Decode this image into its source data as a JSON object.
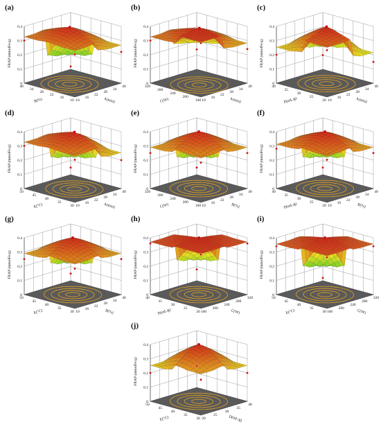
{
  "figure": {
    "background": "#ffffff",
    "surface_low_color": "#22c32a",
    "surface_mid_color": "#e8e020",
    "surface_high_color": "#d42a1a",
    "floor_color": "#5a5a5a",
    "contour_color": "#e6a21e"
  },
  "chart_data": [
    {
      "panel_label": "(a)",
      "type": "surface",
      "zlabel": "FRAP (mmolFe/g)",
      "z_ticks": [
        "0",
        "0.1",
        "0.2",
        "0.3",
        "0.4"
      ],
      "zlim": [
        0,
        0.4
      ],
      "xlabel": "A(min)",
      "x_ticks": [
        "10",
        "16",
        "22",
        "28",
        "34",
        "40"
      ],
      "xlim": [
        10,
        40
      ],
      "ylabel": "B(%)",
      "y_ticks": [
        "10",
        "16",
        "22",
        "28",
        "34",
        "40"
      ],
      "ylim": [
        10,
        40
      ],
      "surface": {
        "peak_x": 25,
        "peak_y": 27,
        "peak_z": 0.4,
        "corners": {
          "x_min_y_min": 0.02,
          "x_max_y_min": 0.22,
          "x_min_y_max": 0.3,
          "x_max_y_max": 0.3
        }
      }
    },
    {
      "panel_label": "(b)",
      "type": "surface",
      "zlabel": "FRAP (mmolFe/g)",
      "z_ticks": [
        "0",
        "0.1",
        "0.2",
        "0.3",
        "0.4"
      ],
      "zlim": [
        0,
        0.4
      ],
      "xlabel": "A(min)",
      "x_ticks": [
        "10",
        "16",
        "22",
        "28",
        "34",
        "40"
      ],
      "xlim": [
        10,
        40
      ],
      "ylabel": "C(W)",
      "y_ticks": [
        "160",
        "200",
        "240",
        "280",
        "320"
      ],
      "ylim": [
        160,
        320
      ],
      "surface": {
        "peak_x": 27,
        "peak_y": 250,
        "peak_z": 0.4,
        "corners": {
          "x_min_y_min": 0.14,
          "x_max_y_min": 0.24,
          "x_min_y_max": 0.3,
          "x_max_y_max": 0.38
        }
      }
    },
    {
      "panel_label": "(c)",
      "type": "surface",
      "zlabel": "FRAP (mmolFe/g)",
      "z_ticks": [
        "0",
        "0.1",
        "0.2",
        "0.3",
        "0.4"
      ],
      "zlim": [
        0,
        0.4
      ],
      "xlabel": "A(min)",
      "x_ticks": [
        "10",
        "16",
        "22",
        "28",
        "34",
        "40"
      ],
      "xlim": [
        10,
        40
      ],
      "ylabel": "D(mL/g)",
      "y_ticks": [
        "20",
        "25",
        "30",
        "35",
        "40"
      ],
      "ylim": [
        20,
        40
      ],
      "surface": {
        "peak_x": 26,
        "peak_y": 30,
        "peak_z": 0.4,
        "corners": {
          "x_min_y_min": 0.1,
          "x_max_y_min": 0.15,
          "x_min_y_max": 0.2,
          "x_max_y_max": 0.33
        }
      }
    },
    {
      "panel_label": "(d)",
      "type": "surface",
      "zlabel": "FRAP (mmolFe/g)",
      "z_ticks": [
        "0",
        "0.1",
        "0.2",
        "0.3",
        "0.4"
      ],
      "zlim": [
        0,
        0.4
      ],
      "xlabel": "A(min)",
      "x_ticks": [
        "10",
        "16",
        "22",
        "28",
        "34",
        "40"
      ],
      "xlim": [
        10,
        40
      ],
      "ylabel": "E(°C)",
      "y_ticks": [
        "30",
        "35",
        "40",
        "45",
        "50"
      ],
      "ylim": [
        30,
        50
      ],
      "surface": {
        "peak_x": 26,
        "peak_y": 40,
        "peak_z": 0.4,
        "corners": {
          "x_min_y_min": 0.05,
          "x_max_y_min": 0.2,
          "x_min_y_max": 0.3,
          "x_max_y_max": 0.3
        }
      }
    },
    {
      "panel_label": "(e)",
      "type": "surface",
      "zlabel": "FRAP (mmolFe/g)",
      "z_ticks": [
        "0",
        "0.1",
        "0.2",
        "0.3",
        "0.4"
      ],
      "zlim": [
        0,
        0.4
      ],
      "xlabel": "B(%)",
      "x_ticks": [
        "10",
        "16",
        "22",
        "28",
        "34",
        "40"
      ],
      "xlim": [
        10,
        40
      ],
      "ylabel": "C(W)",
      "y_ticks": [
        "160",
        "200",
        "240",
        "280",
        "320"
      ],
      "ylim": [
        160,
        320
      ],
      "surface": {
        "peak_x": 25,
        "peak_y": 240,
        "peak_z": 0.4,
        "corners": {
          "x_min_y_min": 0.05,
          "x_max_y_min": 0.25,
          "x_min_y_max": 0.25,
          "x_max_y_max": 0.28
        }
      }
    },
    {
      "panel_label": "(f)",
      "type": "surface",
      "zlabel": "FRAP (mmolFe/g)",
      "z_ticks": [
        "0",
        "0.1",
        "0.2",
        "0.3",
        "0.4"
      ],
      "zlim": [
        0,
        0.4
      ],
      "xlabel": "B(%)",
      "x_ticks": [
        "10",
        "16",
        "22",
        "28",
        "34",
        "40"
      ],
      "xlim": [
        10,
        40
      ],
      "ylabel": "D(mL/g)",
      "y_ticks": [
        "20",
        "25",
        "30",
        "35",
        "40"
      ],
      "ylim": [
        20,
        40
      ],
      "surface": {
        "peak_x": 25,
        "peak_y": 30,
        "peak_z": 0.4,
        "corners": {
          "x_min_y_min": 0.05,
          "x_max_y_min": 0.25,
          "x_min_y_max": 0.28,
          "x_max_y_max": 0.3
        }
      }
    },
    {
      "panel_label": "(g)",
      "type": "surface",
      "zlabel": "FRAP (mmolFe/g)",
      "z_ticks": [
        "0",
        "0.1",
        "0.2",
        "0.3",
        "0.4"
      ],
      "zlim": [
        0,
        0.4
      ],
      "xlabel": "B(%)",
      "x_ticks": [
        "10",
        "16",
        "22",
        "28",
        "34",
        "40"
      ],
      "xlim": [
        10,
        40
      ],
      "ylabel": "E(°C)",
      "y_ticks": [
        "30",
        "35",
        "40",
        "45",
        "50"
      ],
      "ylim": [
        30,
        50
      ],
      "surface": {
        "peak_x": 25,
        "peak_y": 40,
        "peak_z": 0.4,
        "corners": {
          "x_min_y_min": 0.05,
          "x_max_y_min": 0.25,
          "x_min_y_max": 0.25,
          "x_max_y_max": 0.28
        }
      }
    },
    {
      "panel_label": "(h)",
      "type": "surface",
      "zlabel": "FRAP (mmolFe/g)",
      "z_ticks": [
        "0",
        "0.1",
        "0.2",
        "0.3",
        "0.4"
      ],
      "zlim": [
        0,
        0.4
      ],
      "xlabel": "C(W)",
      "x_ticks": [
        "160",
        "200",
        "240",
        "280",
        "320"
      ],
      "xlim": [
        160,
        320
      ],
      "ylabel": "D(mL/g)",
      "y_ticks": [
        "20",
        "25",
        "30",
        "35",
        "40"
      ],
      "ylim": [
        20,
        40
      ],
      "surface": {
        "peak_x": 240,
        "peak_y": 30,
        "peak_z": 0.4,
        "corners": {
          "x_min_y_min": 0.08,
          "x_max_y_min": 0.36,
          "x_min_y_max": 0.36,
          "x_max_y_max": 0.38
        }
      }
    },
    {
      "panel_label": "(i)",
      "type": "surface",
      "zlabel": "FRAP (mmolFe/g)",
      "z_ticks": [
        "0",
        "0.1",
        "0.2",
        "0.3",
        "0.4"
      ],
      "zlim": [
        0,
        0.4
      ],
      "xlabel": "C(W)",
      "x_ticks": [
        "160",
        "200",
        "240",
        "280",
        "320"
      ],
      "xlim": [
        160,
        320
      ],
      "ylabel": "E(°C)",
      "y_ticks": [
        "30",
        "35",
        "40",
        "45",
        "50"
      ],
      "ylim": [
        30,
        50
      ],
      "surface": {
        "peak_x": 240,
        "peak_y": 40,
        "peak_z": 0.4,
        "corners": {
          "x_min_y_min": 0.02,
          "x_max_y_min": 0.34,
          "x_min_y_max": 0.34,
          "x_max_y_max": 0.36
        }
      }
    },
    {
      "panel_label": "(j)",
      "type": "surface",
      "zlabel": "FRAP (mmolFe/g)",
      "z_ticks": [
        "0",
        "0.1",
        "0.2",
        "0.3",
        "0.4"
      ],
      "zlim": [
        0,
        0.4
      ],
      "xlabel": "D(mL/g)",
      "x_ticks": [
        "20",
        "25",
        "30",
        "35",
        "40"
      ],
      "xlim": [
        20,
        40
      ],
      "ylabel": "E(°C)",
      "y_ticks": [
        "30",
        "35",
        "40",
        "45",
        "50"
      ],
      "ylim": [
        30,
        50
      ],
      "surface": {
        "peak_x": 30,
        "peak_y": 40,
        "peak_z": 0.4,
        "corners": {
          "x_min_y_min": 0.15,
          "x_max_y_min": 0.2,
          "x_min_y_max": 0.2,
          "x_max_y_max": 0.25
        }
      }
    }
  ]
}
